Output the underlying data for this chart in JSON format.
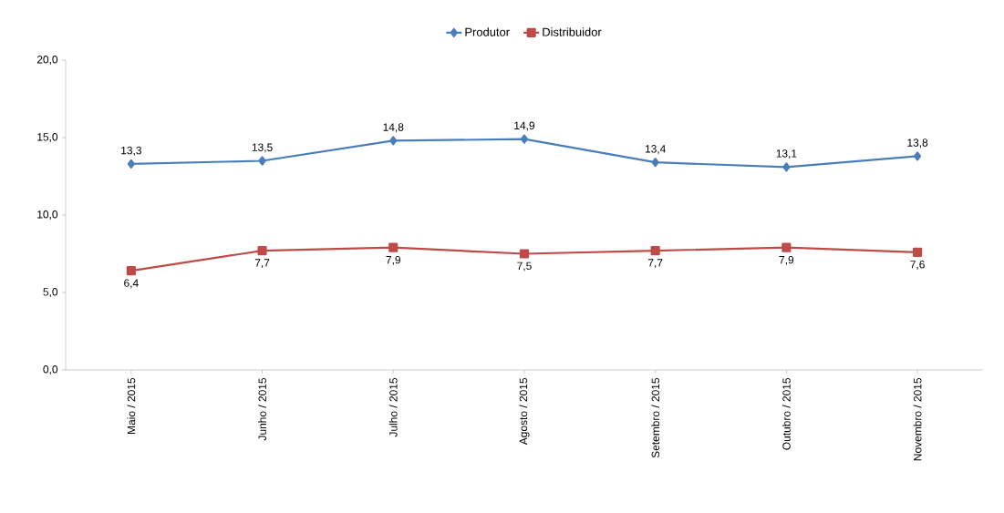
{
  "chart_data": {
    "type": "line",
    "categories": [
      "Maio / 2015",
      "Junho / 2015",
      "Julho / 2015",
      "Agosto / 2015",
      "Setembro / 2015",
      "Outubro / 2015",
      "Novembro / 2015"
    ],
    "series": [
      {
        "name": "Produtor",
        "color": "#4a7ebb",
        "marker": "diamond",
        "values": [
          13.3,
          13.5,
          14.8,
          14.9,
          13.4,
          13.1,
          13.8
        ],
        "value_labels": [
          "13,3",
          "13,5",
          "14,8",
          "14,9",
          "13,4",
          "13,1",
          "13,8"
        ]
      },
      {
        "name": "Distribuidor",
        "color": "#be4b48",
        "marker": "square",
        "values": [
          6.4,
          7.7,
          7.9,
          7.5,
          7.7,
          7.9,
          7.6
        ],
        "value_labels": [
          "6,4",
          "7,7",
          "7,9",
          "7,5",
          "7,7",
          "7,9",
          "7,6"
        ]
      }
    ],
    "ylim": [
      0,
      20
    ],
    "yticks": [
      {
        "value": 0,
        "label": "0,0"
      },
      {
        "value": 5,
        "label": "5,0"
      },
      {
        "value": 10,
        "label": "10,0"
      },
      {
        "value": 15,
        "label": "15,0"
      },
      {
        "value": 20,
        "label": "20,0"
      }
    ],
    "grid": false,
    "legend": "top",
    "line_style": "solid"
  }
}
